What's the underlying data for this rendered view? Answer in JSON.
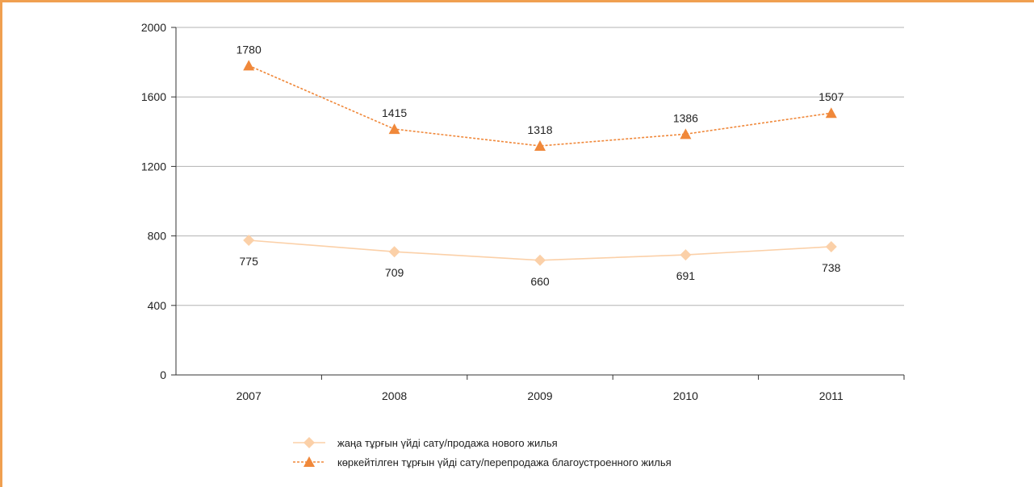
{
  "chart_data": {
    "type": "line",
    "categories": [
      "2007",
      "2008",
      "2009",
      "2010",
      "2011"
    ],
    "ylim": [
      0,
      2000
    ],
    "yticks": [
      0,
      400,
      800,
      1200,
      1600,
      2000
    ],
    "grid": true,
    "legend_position": "bottom",
    "series": [
      {
        "name": "жаңа тұрғын үйді сату/продажа нового жилья",
        "values": [
          775,
          709,
          660,
          691,
          738
        ],
        "labels": [
          "775",
          "709",
          "660",
          "691",
          "738"
        ],
        "color": "#fbd0a8",
        "marker": "diamond",
        "line_style": "solid",
        "label_position": "below"
      },
      {
        "name": "көркейтілген тұрғын үйді сату/перепродажа благоустроенного жилья",
        "values": [
          1780,
          1415,
          1318,
          1386,
          1507
        ],
        "labels": [
          "1780",
          "1415",
          "1318",
          "1386",
          "1507"
        ],
        "color": "#f0883a",
        "marker": "triangle",
        "line_style": "dotted",
        "label_position": "above"
      }
    ]
  }
}
